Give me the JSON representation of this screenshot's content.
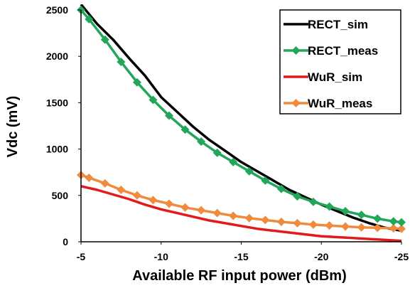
{
  "chart_data": {
    "type": "line",
    "title": "",
    "xlabel": "Available RF input power (dBm)",
    "ylabel": "Vdc (mV)",
    "xlim": [
      -5,
      -25
    ],
    "ylim": [
      0,
      2500
    ],
    "x_ticks": [
      "-5",
      "-10",
      "-15",
      "-20",
      "-25"
    ],
    "y_ticks": [
      "0",
      "500",
      "1000",
      "1500",
      "2000",
      "2500"
    ],
    "x_axis_reversed": true,
    "grid": false,
    "legend_position": "top-right",
    "series": [
      {
        "name": "RECT_sim",
        "color": "#000000",
        "marker": "none",
        "x": [
          -5,
          -6,
          -7,
          -8,
          -9,
          -10,
          -11,
          -12,
          -13,
          -14,
          -15,
          -16,
          -17,
          -18,
          -19,
          -20,
          -21,
          -22,
          -23,
          -24,
          -25
        ],
        "y": [
          2560,
          2350,
          2180,
          1980,
          1790,
          1560,
          1400,
          1240,
          1100,
          980,
          860,
          760,
          660,
          560,
          480,
          400,
          330,
          260,
          200,
          150,
          120
        ]
      },
      {
        "name": "RECT_meas",
        "color": "#22a65a",
        "marker": "diamond",
        "x": [
          -5,
          -5.5,
          -6.5,
          -7.5,
          -8.5,
          -9.5,
          -10.5,
          -11.5,
          -12.5,
          -13.5,
          -14.5,
          -15.5,
          -16.5,
          -17.5,
          -18.5,
          -19.5,
          -20.5,
          -21.5,
          -22.5,
          -23.5,
          -24.5,
          -25
        ],
        "y": [
          2500,
          2400,
          2180,
          1940,
          1720,
          1530,
          1360,
          1210,
          1080,
          960,
          860,
          760,
          660,
          570,
          490,
          430,
          380,
          330,
          290,
          250,
          220,
          210
        ]
      },
      {
        "name": "WuR_sim",
        "color": "#e3191b",
        "marker": "none",
        "x": [
          -5,
          -6,
          -7,
          -8,
          -9,
          -10,
          -11,
          -12,
          -13,
          -14,
          -15,
          -16,
          -17,
          -18,
          -19,
          -20,
          -21,
          -22,
          -23,
          -24,
          -25
        ],
        "y": [
          600,
          560,
          510,
          460,
          400,
          350,
          310,
          270,
          230,
          200,
          170,
          140,
          120,
          100,
          80,
          60,
          50,
          40,
          30,
          20,
          10
        ]
      },
      {
        "name": "WuR_meas",
        "color": "#f08a3c",
        "marker": "diamond",
        "x": [
          -5,
          -5.5,
          -6.5,
          -7.5,
          -8.5,
          -9.5,
          -10.5,
          -11.5,
          -12.5,
          -13.5,
          -14.5,
          -15.5,
          -16.5,
          -17.5,
          -18.5,
          -19.5,
          -20.5,
          -21.5,
          -22.5,
          -23.5,
          -24.5,
          -25
        ],
        "y": [
          720,
          690,
          630,
          560,
          500,
          450,
          410,
          370,
          340,
          310,
          280,
          255,
          235,
          215,
          200,
          185,
          175,
          165,
          155,
          150,
          145,
          140
        ]
      }
    ]
  }
}
